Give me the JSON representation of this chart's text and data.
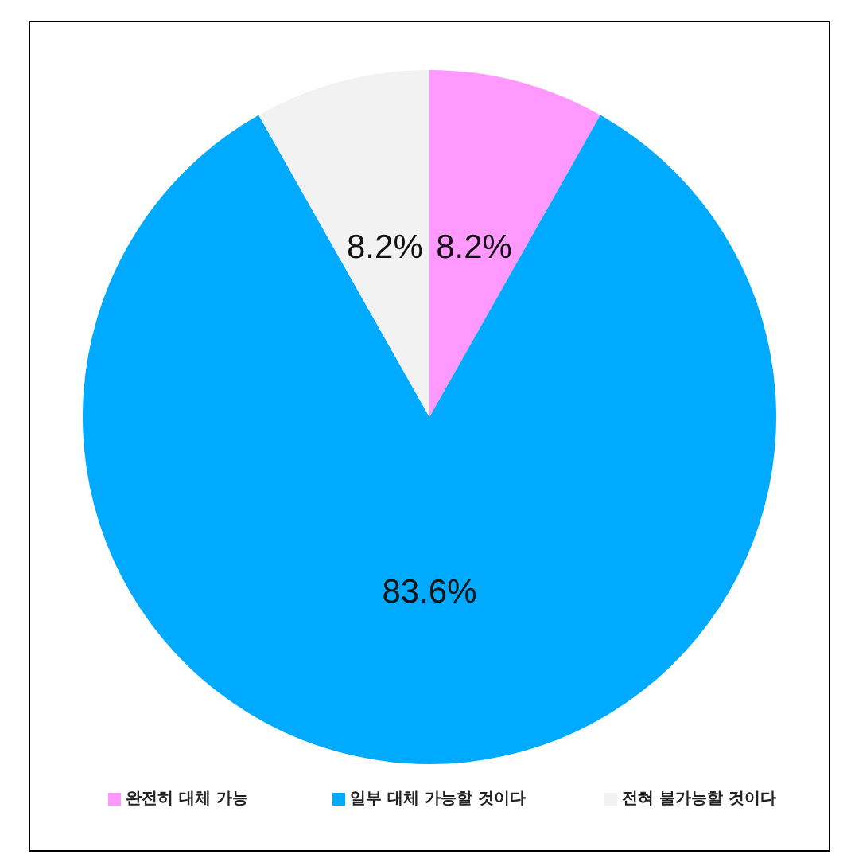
{
  "chart_data": {
    "type": "pie",
    "categories": [
      "완전히 대체 가능",
      "일부 대체 가능할 것이다",
      "전혀 불가능할 것이다"
    ],
    "values": [
      8.2,
      83.6,
      8.2
    ],
    "value_labels": [
      "8.2%",
      "83.6%",
      "8.2%"
    ],
    "colors": [
      "#ff99ff",
      "#00aaff",
      "#f2f2f2"
    ],
    "legend": "bottom"
  }
}
